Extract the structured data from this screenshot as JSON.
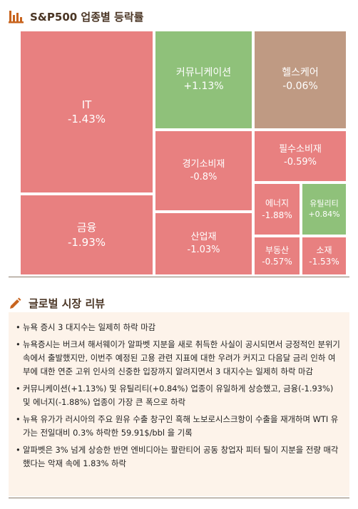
{
  "header": {
    "title": "S&P500 업종별 등락률",
    "icon": "bar-chart-icon"
  },
  "colors": {
    "negative": "#e88080",
    "positive": "#8fc17a",
    "flat": "#bf9a83",
    "header_text": "#4a3524",
    "review_bg": "#fdf3ea"
  },
  "chart_data": {
    "type": "treemap",
    "title": "S&P500 업종별 등락률",
    "unit": "%",
    "items": [
      {
        "name": "IT",
        "label": "-1.43%",
        "value": -1.43
      },
      {
        "name": "커뮤니케이션",
        "label": "+1.13%",
        "value": 1.13
      },
      {
        "name": "헬스케어",
        "label": "-0.06%",
        "value": -0.06
      },
      {
        "name": "필수소비재",
        "label": "-0.59%",
        "value": -0.59
      },
      {
        "name": "경기소비재",
        "label": "-0.8%",
        "value": -0.8
      },
      {
        "name": "금융",
        "label": "-1.93%",
        "value": -1.93
      },
      {
        "name": "에너지",
        "label": "-1.88%",
        "value": -1.88
      },
      {
        "name": "유틸리티",
        "label": "+0.84%",
        "value": 0.84
      },
      {
        "name": "산업재",
        "label": "-1.03%",
        "value": -1.03
      },
      {
        "name": "부동산",
        "label": "-0.57%",
        "value": -0.57
      },
      {
        "name": "소재",
        "label": "-1.53%",
        "value": -1.53
      }
    ]
  },
  "review": {
    "title": "글로벌 시장 리뷰",
    "icon": "pencil-icon",
    "bullets": [
      "뉴욕 증시 3 대지수는 일제히 하락 마감",
      "뉴욕증시는 버크셔 해서웨이가 알파벳 지분을 새로 취득한 사실이 공시되면서 긍정적인 분위기 속에서 출발했지만, 이번주 예정된 고용 관련 지표에 대한 우려가 커지고 다음달 금리 인하 여부에 대한 연준 고위 인사의 신중한 입장까지 알려지면서 3 대지수는 일제히 하락 마감",
      "커뮤니케이션(+1.13%) 및 유틸리티(+0.84%) 업종이 유일하게 상승했고, 금융(-1.93%) 및 에너지(-1.88%) 업종이 가장 큰 폭으로 하락",
      "뉴욕 유가가 러시아의 주요 원유 수출 창구인 흑해 노보로시스크항이 수출을 재개하며 WTI 유가는 전일대비 0.3% 하락한 59.91$/bbl 을 기록",
      "알파벳은 3% 넘게 상승한 반면 엔비디아는 팔란티어 공동 창업자 피터 틸이 지분을 전량 매각했다는 악재 속에 1.83% 하락"
    ]
  }
}
